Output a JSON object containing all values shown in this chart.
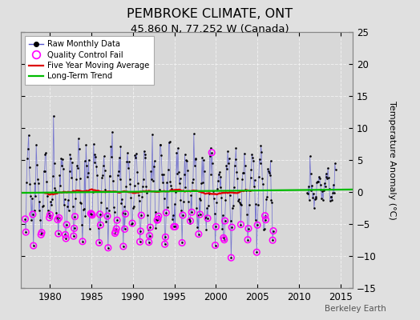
{
  "title": "PEMBROKE CLIMATE, ONT",
  "subtitle": "45.860 N, 77.252 W (Canada)",
  "ylabel": "Temperature Anomaly (°C)",
  "watermark": "Berkeley Earth",
  "ylim": [
    -15,
    25
  ],
  "xlim": [
    1976.5,
    2016.5
  ],
  "yticks": [
    -15,
    -10,
    -5,
    0,
    5,
    10,
    15,
    20,
    25
  ],
  "xticks": [
    1980,
    1985,
    1990,
    1995,
    2000,
    2005,
    2010,
    2015
  ],
  "bg_color": "#e0e0e0",
  "plot_bg_color": "#d8d8d8",
  "raw_line_color": "#5555cc",
  "raw_dot_color": "#000000",
  "qc_fail_color": "#ff00ff",
  "moving_avg_color": "#dd0000",
  "trend_color": "#00bb00",
  "grid_color": "#ffffff"
}
